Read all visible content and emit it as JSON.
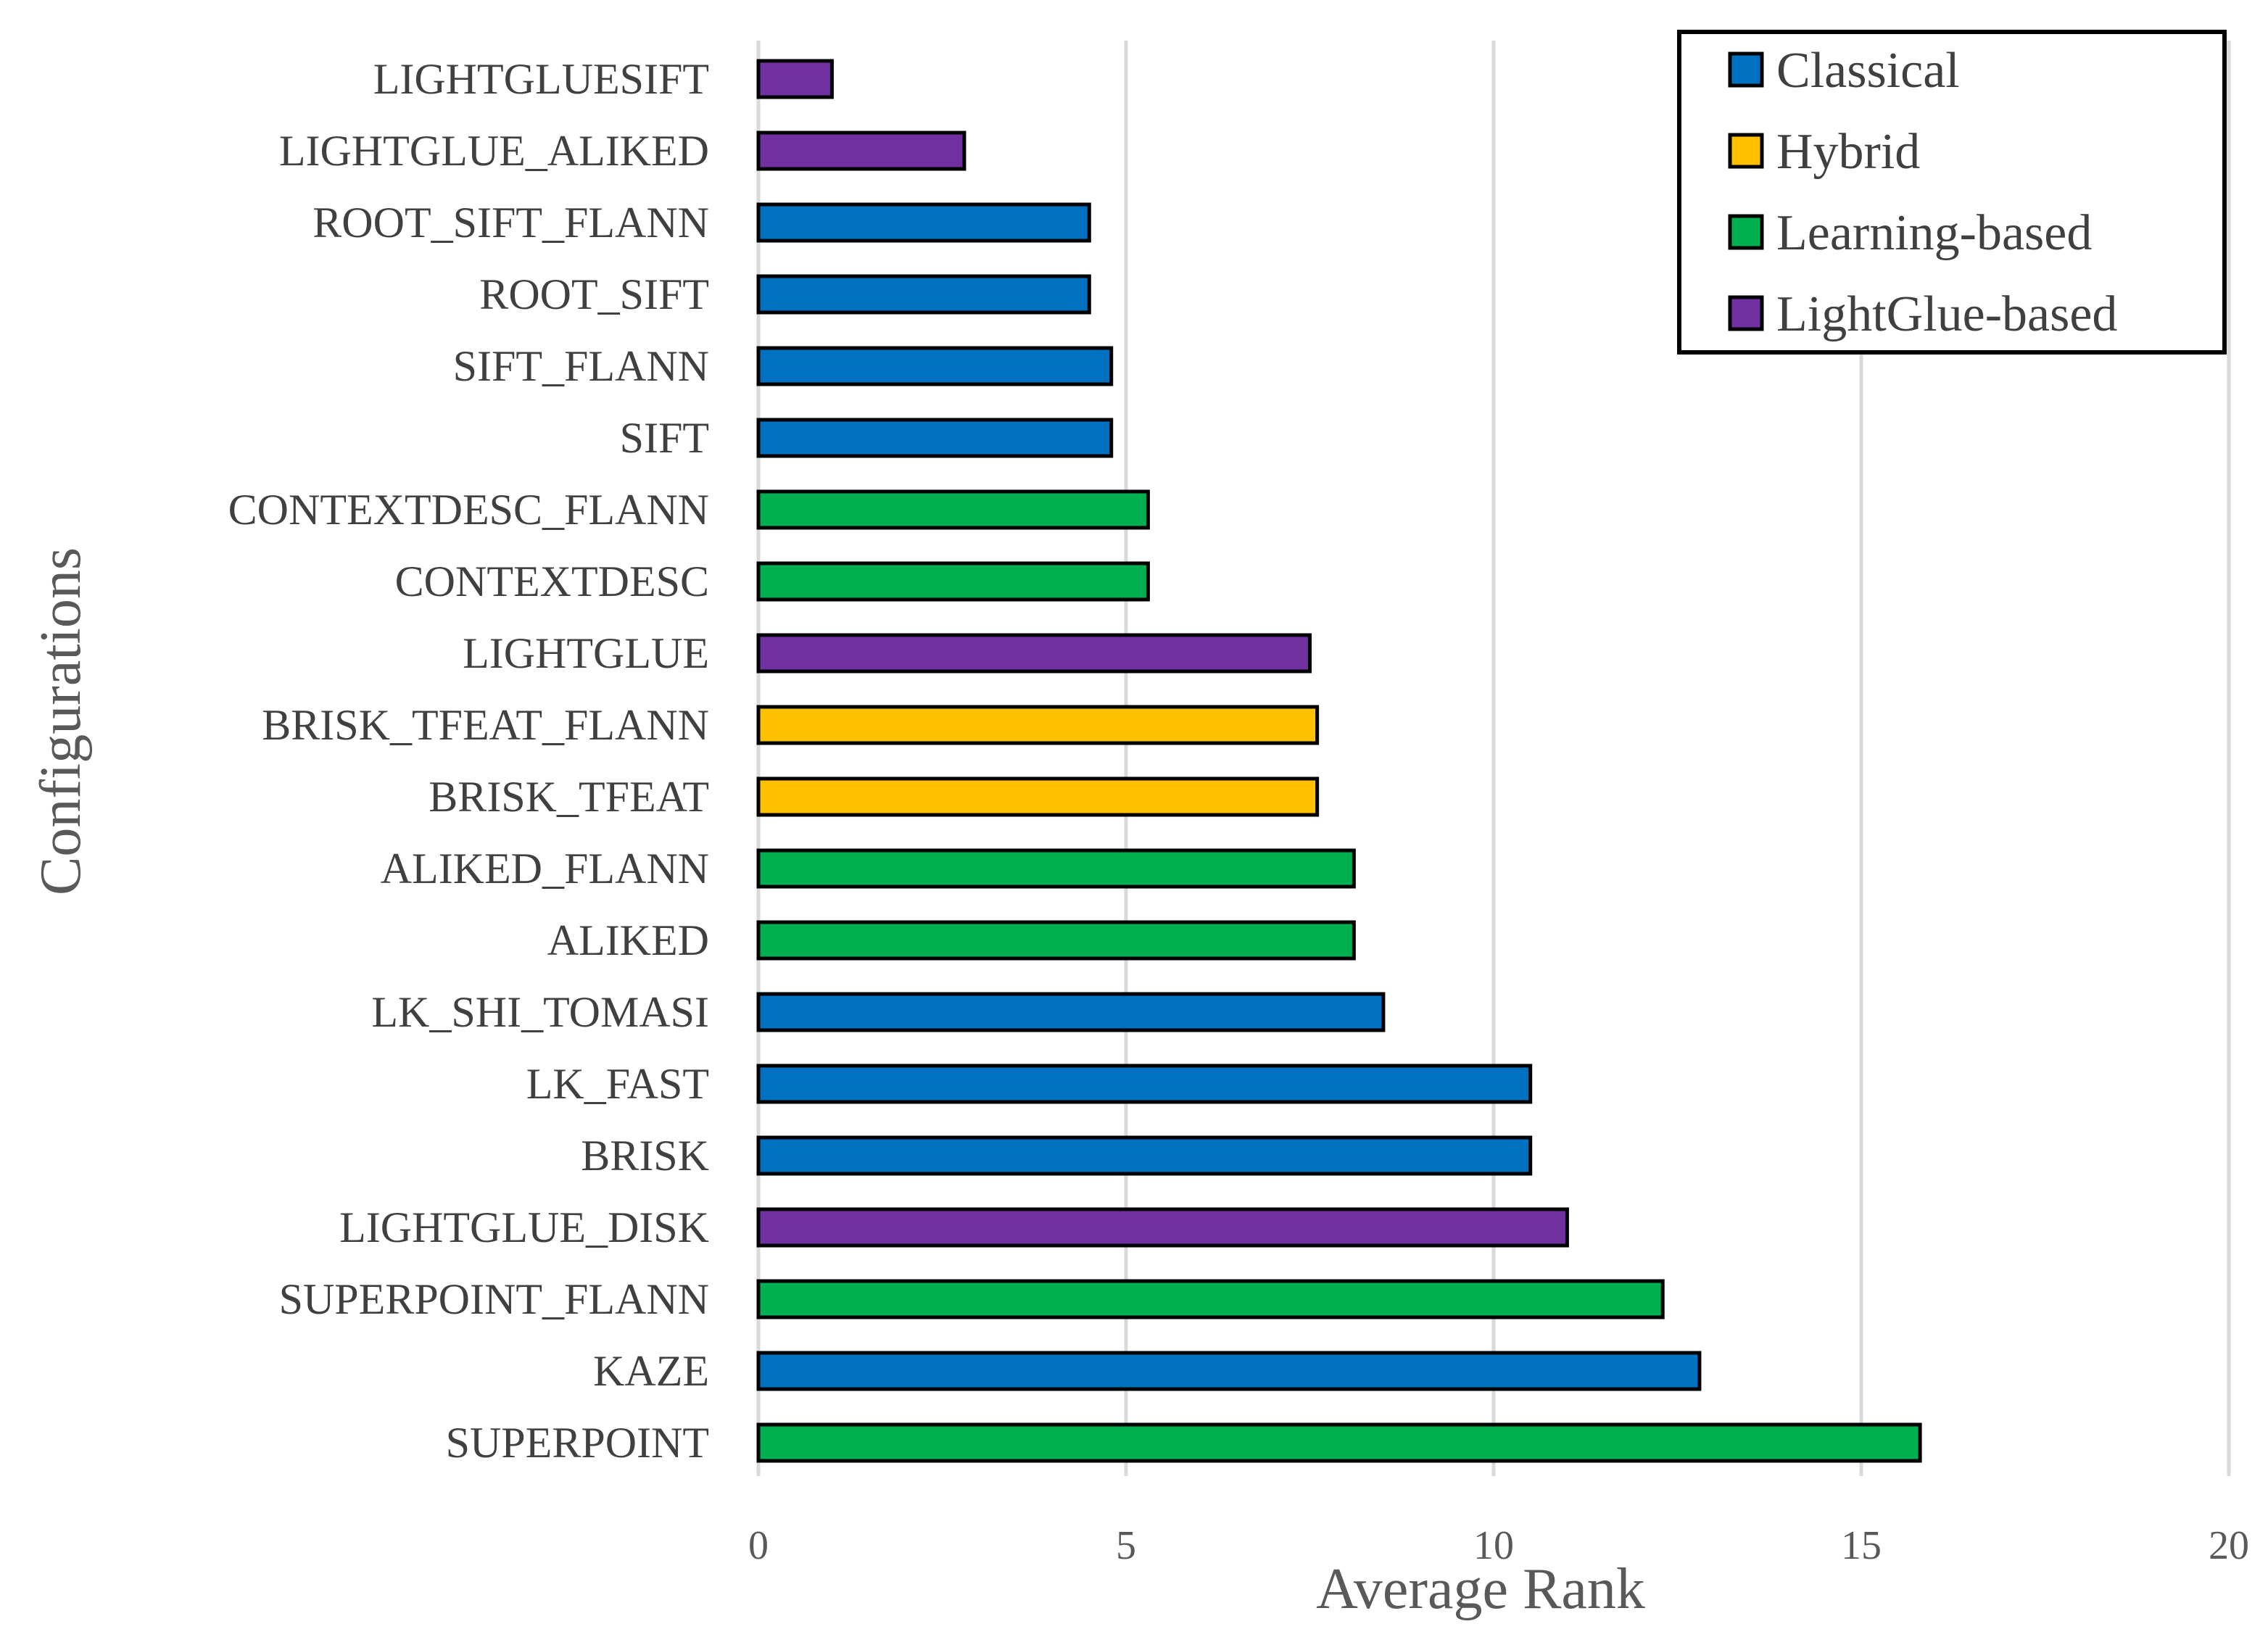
{
  "chart_data": {
    "type": "bar",
    "orientation": "horizontal",
    "title": "",
    "xlabel": "Average Rank",
    "ylabel": "Configurations",
    "xlim": [
      0,
      20
    ],
    "xticks": [
      "0",
      "5",
      "10",
      "15",
      "20"
    ],
    "grid": true,
    "legend_position": "top-right",
    "legend": [
      {
        "name": "Classical",
        "color": "#0070C0"
      },
      {
        "name": "Hybrid",
        "color": "#FFC000"
      },
      {
        "name": "Learning-based",
        "color": "#00B050"
      },
      {
        "name": "LightGlue-based",
        "color": "#7030A0"
      }
    ],
    "bars": [
      {
        "label": "LIGHTGLUESIFT",
        "value": 1.0,
        "group": "LightGlue-based"
      },
      {
        "label": "LIGHTGLUE_ALIKED",
        "value": 2.8,
        "group": "LightGlue-based"
      },
      {
        "label": "ROOT_SIFT_FLANN",
        "value": 4.5,
        "group": "Classical"
      },
      {
        "label": "ROOT_SIFT",
        "value": 4.5,
        "group": "Classical"
      },
      {
        "label": "SIFT_FLANN",
        "value": 4.8,
        "group": "Classical"
      },
      {
        "label": "SIFT",
        "value": 4.8,
        "group": "Classical"
      },
      {
        "label": "CONTEXTDESC_FLANN",
        "value": 5.3,
        "group": "Learning-based"
      },
      {
        "label": "CONTEXTDESC",
        "value": 5.3,
        "group": "Learning-based"
      },
      {
        "label": "LIGHTGLUE",
        "value": 7.5,
        "group": "LightGlue-based"
      },
      {
        "label": "BRISK_TFEAT_FLANN",
        "value": 7.6,
        "group": "Hybrid"
      },
      {
        "label": "BRISK_TFEAT",
        "value": 7.6,
        "group": "Hybrid"
      },
      {
        "label": "ALIKED_FLANN",
        "value": 8.1,
        "group": "Learning-based"
      },
      {
        "label": "ALIKED",
        "value": 8.1,
        "group": "Learning-based"
      },
      {
        "label": "LK_SHI_TOMASI",
        "value": 8.5,
        "group": "Classical"
      },
      {
        "label": "LK_FAST",
        "value": 10.5,
        "group": "Classical"
      },
      {
        "label": "BRISK",
        "value": 10.5,
        "group": "Classical"
      },
      {
        "label": "LIGHTGLUE_DISK",
        "value": 11.0,
        "group": "LightGlue-based"
      },
      {
        "label": "SUPERPOINT_FLANN",
        "value": 12.3,
        "group": "Learning-based"
      },
      {
        "label": "KAZE",
        "value": 12.8,
        "group": "Classical"
      },
      {
        "label": "SUPERPOINT",
        "value": 15.8,
        "group": "Learning-based"
      }
    ]
  }
}
